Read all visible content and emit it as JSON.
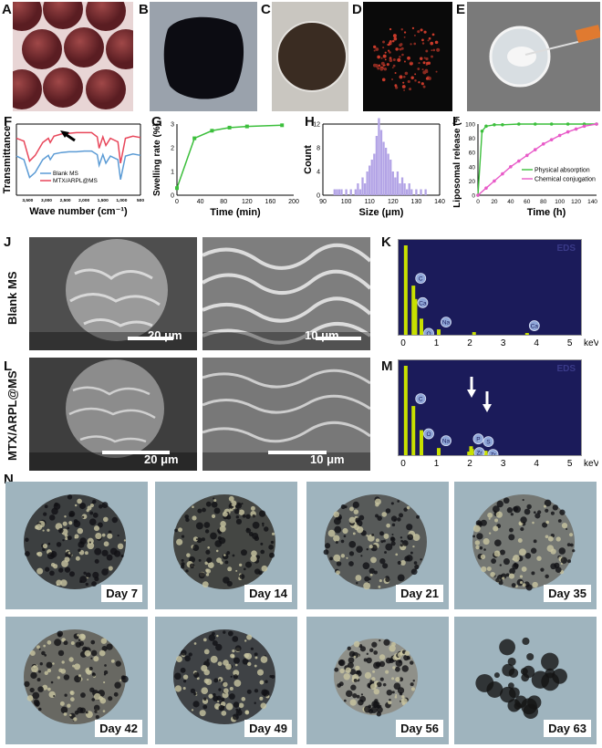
{
  "panels": {
    "A": "A",
    "B": "B",
    "C": "C",
    "D": "D",
    "E": "E",
    "F": "F",
    "G": "G",
    "H": "H",
    "I": "I",
    "J": "J",
    "K": "K",
    "L": "L",
    "M": "M",
    "N": "N"
  },
  "rows": {
    "j": "Blank MS",
    "l": "MTX/ARPL@MS"
  },
  "sem": {
    "j_left_scale": "20 μm",
    "j_right_scale": "10 μm",
    "l_left_scale": "20 μm",
    "l_right_scale": "10 μm"
  },
  "days": [
    "Day 7",
    "Day 14",
    "Day 21",
    "Day 35",
    "Day 42",
    "Day 49",
    "Day 56",
    "Day 63"
  ],
  "colors": {
    "blank": "#5b9bd5",
    "mtx": "#e8465a",
    "green": "#3cbf3c",
    "pink": "#e85ac8",
    "hist": "#b3a4e6",
    "eds_bg": "#1b1b5a",
    "eds_peak": "#c8e000"
  },
  "chart_data": [
    {
      "panel": "F",
      "type": "line",
      "xlabel": "Wave number (cm⁻¹)",
      "ylabel": "Transmittance",
      "x_ticks": [
        "3,500",
        "3,000",
        "2,500",
        "2,000",
        "1,500",
        "1,000",
        "500"
      ],
      "xlim": [
        3800,
        500
      ],
      "series": [
        {
          "name": "Blank MS",
          "color": "#5b9bd5",
          "x": [
            3800,
            3600,
            3450,
            3300,
            3100,
            2950,
            2900,
            2800,
            2600,
            2400,
            2200,
            2000,
            1800,
            1650,
            1600,
            1500,
            1420,
            1300,
            1100,
            1030,
            900,
            700,
            500
          ],
          "y": [
            0.55,
            0.5,
            0.25,
            0.32,
            0.5,
            0.56,
            0.5,
            0.58,
            0.6,
            0.61,
            0.61,
            0.62,
            0.62,
            0.57,
            0.42,
            0.57,
            0.45,
            0.55,
            0.5,
            0.22,
            0.55,
            0.58,
            0.56
          ]
        },
        {
          "name": "MTX/ARPL@MS",
          "color": "#e8465a",
          "x": [
            3800,
            3600,
            3450,
            3300,
            3100,
            2950,
            2900,
            2800,
            2600,
            2400,
            2200,
            2000,
            1800,
            1650,
            1600,
            1500,
            1420,
            1300,
            1100,
            1030,
            900,
            700,
            500
          ],
          "y": [
            0.8,
            0.76,
            0.48,
            0.56,
            0.74,
            0.8,
            0.74,
            0.83,
            0.86,
            0.87,
            0.88,
            0.88,
            0.88,
            0.82,
            0.66,
            0.82,
            0.7,
            0.8,
            0.75,
            0.45,
            0.8,
            0.83,
            0.81
          ]
        }
      ]
    },
    {
      "panel": "G",
      "type": "line",
      "xlabel": "Time (min)",
      "ylabel": "Swelling rate (%)",
      "xlim": [
        0,
        200
      ],
      "ylim": [
        0,
        3
      ],
      "x_ticks": [
        0,
        40,
        80,
        120,
        160,
        200
      ],
      "y_ticks": [
        0,
        1,
        2,
        3
      ],
      "series": [
        {
          "x": [
            0,
            30,
            60,
            90,
            120,
            180
          ],
          "y": [
            0.3,
            2.4,
            2.72,
            2.85,
            2.9,
            2.95
          ]
        }
      ]
    },
    {
      "panel": "H",
      "type": "bar",
      "xlabel": "Size (μm)",
      "ylabel": "Count",
      "xlim": [
        90,
        140
      ],
      "ylim": [
        0,
        12
      ],
      "x_ticks": [
        90,
        100,
        110,
        120,
        130,
        140
      ],
      "y_ticks": [
        0,
        4,
        8,
        12
      ],
      "x": [
        95,
        96,
        97,
        98,
        100,
        102,
        104,
        105,
        106,
        107,
        108,
        109,
        110,
        111,
        112,
        113,
        114,
        115,
        116,
        117,
        118,
        119,
        120,
        121,
        122,
        123,
        124,
        125,
        126,
        127,
        128,
        130,
        132,
        134
      ],
      "values": [
        1,
        1,
        1,
        1,
        1,
        1,
        1,
        2,
        1,
        3,
        2,
        4,
        5,
        6,
        7,
        10,
        13,
        11,
        9,
        8,
        7,
        6,
        4,
        3,
        4,
        2,
        3,
        2,
        1,
        2,
        1,
        1,
        1,
        1
      ]
    },
    {
      "panel": "I",
      "type": "line",
      "xlabel": "Time (h)",
      "ylabel": "Liposomal release (%)",
      "xlim": [
        0,
        145
      ],
      "ylim": [
        0,
        100
      ],
      "x_ticks": [
        0,
        20,
        40,
        60,
        80,
        100,
        120,
        140
      ],
      "y_ticks": [
        0,
        20,
        40,
        60,
        80,
        100
      ],
      "legend": "bottom-right",
      "series": [
        {
          "name": "Physical absorption",
          "color": "#3cbf3c",
          "x": [
            0,
            5,
            10,
            20,
            30,
            50,
            70,
            90,
            110,
            130,
            145
          ],
          "y": [
            0,
            90,
            97,
            99,
            99,
            100,
            100,
            100,
            100,
            100,
            100
          ]
        },
        {
          "name": "Chemical conjugation",
          "color": "#e85ac8",
          "x": [
            0,
            10,
            20,
            30,
            40,
            50,
            60,
            70,
            80,
            90,
            100,
            110,
            120,
            130,
            145
          ],
          "y": [
            0,
            10,
            20,
            30,
            40,
            48,
            56,
            64,
            72,
            78,
            84,
            89,
            93,
            97,
            100
          ]
        }
      ]
    },
    {
      "panel": "K",
      "type": "bar",
      "xlabel": "keV",
      "xlim": [
        0,
        5.2
      ],
      "x_ticks": [
        0,
        1,
        2,
        3,
        4,
        5
      ],
      "peaks": [
        {
          "x": 0.05,
          "h": 1.0,
          "label": ""
        },
        {
          "x": 0.28,
          "h": 0.55,
          "label": "C"
        },
        {
          "x": 0.34,
          "h": 0.4,
          "label": "Ca"
        },
        {
          "x": 0.52,
          "h": 0.18,
          "label": "O"
        },
        {
          "x": 1.04,
          "h": 0.06,
          "label": "Na"
        },
        {
          "x": 2.1,
          "h": 0.03,
          "label": ""
        },
        {
          "x": 3.69,
          "h": 0.02,
          "label": "Ca"
        }
      ]
    },
    {
      "panel": "M",
      "type": "bar",
      "xlabel": "keV",
      "xlim": [
        0,
        5.2
      ],
      "x_ticks": [
        0,
        1,
        2,
        3,
        4,
        5
      ],
      "peaks": [
        {
          "x": 0.05,
          "h": 1.0,
          "label": ""
        },
        {
          "x": 0.28,
          "h": 0.55,
          "label": "C"
        },
        {
          "x": 0.52,
          "h": 0.28,
          "label": "O"
        },
        {
          "x": 1.04,
          "h": 0.08,
          "label": "Na"
        },
        {
          "x": 2.01,
          "h": 0.1,
          "label": "P"
        },
        {
          "x": 2.04,
          "h": 0.07,
          "label": "Zr"
        },
        {
          "x": 1.95,
          "h": 0.04,
          "label": "Zr"
        },
        {
          "x": 2.31,
          "h": 0.07,
          "label": "S"
        },
        {
          "x": 2.45,
          "h": 0.05,
          "label": "Zr"
        }
      ]
    }
  ]
}
